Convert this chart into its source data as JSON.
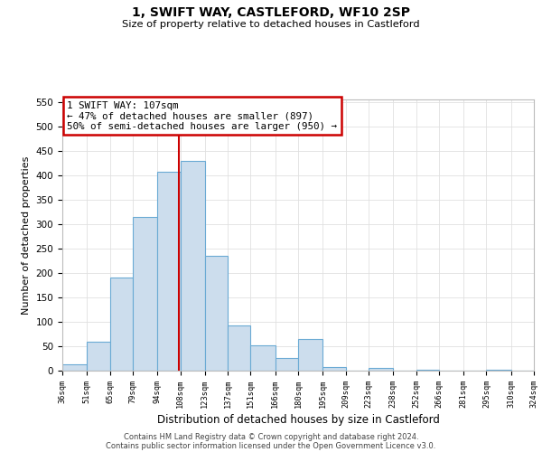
{
  "title": "1, SWIFT WAY, CASTLEFORD, WF10 2SP",
  "subtitle": "Size of property relative to detached houses in Castleford",
  "xlabel": "Distribution of detached houses by size in Castleford",
  "ylabel": "Number of detached properties",
  "bar_color": "#ccdded",
  "bar_edge_color": "#6aaad4",
  "background_color": "#ffffff",
  "grid_color": "#e0e0e0",
  "vline_x": 107,
  "vline_color": "#cc0000",
  "annotation_title": "1 SWIFT WAY: 107sqm",
  "annotation_line1": "← 47% of detached houses are smaller (897)",
  "annotation_line2": "50% of semi-detached houses are larger (950) →",
  "annotation_box_color": "#cc0000",
  "ylim": [
    0,
    555
  ],
  "yticks": [
    0,
    50,
    100,
    150,
    200,
    250,
    300,
    350,
    400,
    450,
    500,
    550
  ],
  "bins": [
    36,
    51,
    65,
    79,
    94,
    108,
    123,
    137,
    151,
    166,
    180,
    195,
    209,
    223,
    238,
    252,
    266,
    281,
    295,
    310,
    324
  ],
  "counts": [
    13,
    60,
    190,
    315,
    407,
    430,
    235,
    93,
    52,
    25,
    65,
    8,
    0,
    5,
    0,
    2,
    0,
    0,
    1,
    0
  ],
  "footnote1": "Contains HM Land Registry data © Crown copyright and database right 2024.",
  "footnote2": "Contains public sector information licensed under the Open Government Licence v3.0."
}
